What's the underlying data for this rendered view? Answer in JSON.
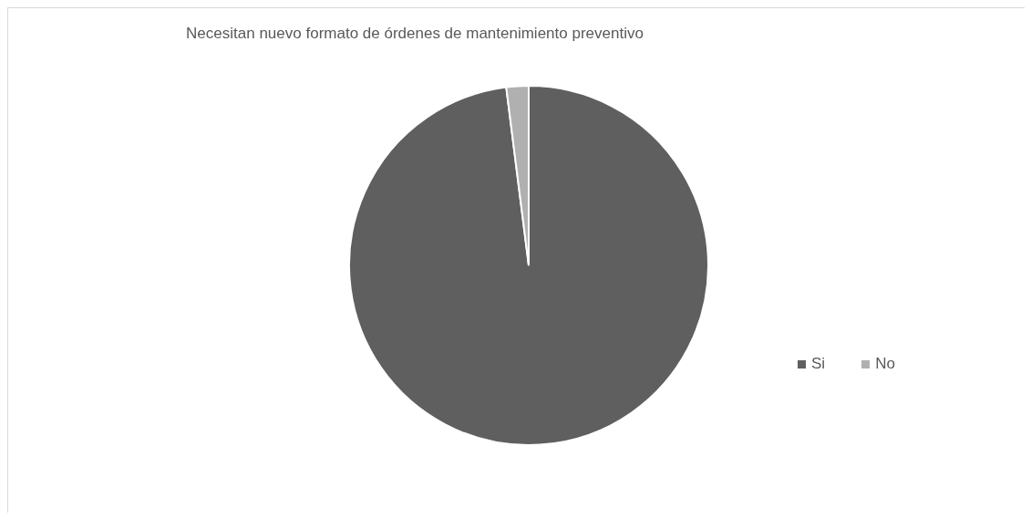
{
  "chart_data": {
    "type": "pie",
    "title": "Necesitan nuevo formato de órdenes de mantenimiento preventivo",
    "categories": [
      "Si",
      "No"
    ],
    "values": [
      98,
      2
    ],
    "colors": [
      "#5f5f5f",
      "#b0b0b0"
    ],
    "legend": "right"
  }
}
